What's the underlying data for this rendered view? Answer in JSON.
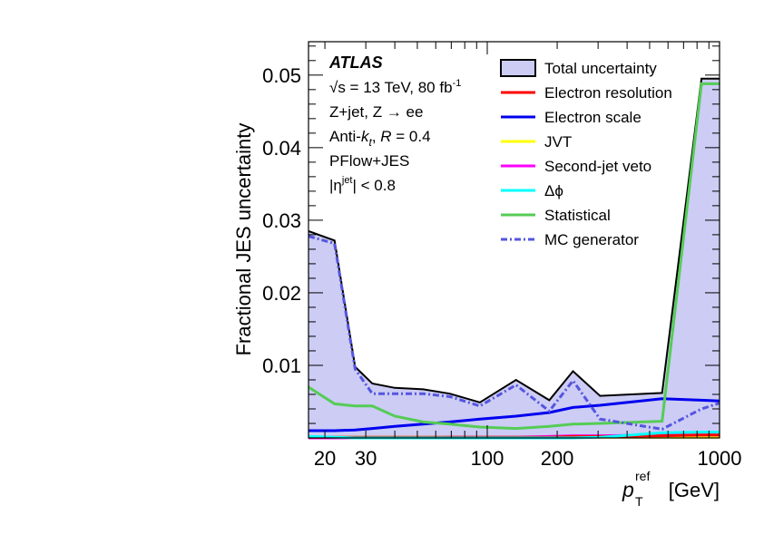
{
  "chart_data": {
    "type": "line",
    "title": "",
    "xlabel": "p_T^ref [GeV]",
    "xlabel_main": "p",
    "xlabel_sub": "T",
    "xlabel_sup": "ref",
    "xlabel_unit": "[GeV]",
    "ylabel": "Fractional JES uncertainty",
    "xscale": "log",
    "xlim": [
      17,
      1000
    ],
    "ylim": [
      0,
      0.0546
    ],
    "x_ticklabels": [
      {
        "value": 20,
        "label": "20"
      },
      {
        "value": 30,
        "label": "30"
      },
      {
        "value": 100,
        "label": "100"
      },
      {
        "value": 200,
        "label": "200"
      },
      {
        "value": 1000,
        "label": "1000"
      }
    ],
    "y_ticklabels": [
      {
        "value": 0.01,
        "label": "0.01"
      },
      {
        "value": 0.02,
        "label": "0.02"
      },
      {
        "value": 0.03,
        "label": "0.03"
      },
      {
        "value": 0.04,
        "label": "0.04"
      },
      {
        "value": 0.05,
        "label": "0.05"
      }
    ],
    "annotations": {
      "experiment": "ATLAS",
      "energy": "√s = 13 TeV, 80 fb",
      "energy_sup": "-1",
      "channel": "Z+jet, Z → ee",
      "algorithm": "Anti-k_t, R = 0.4",
      "algorithm_a": "Anti-",
      "algorithm_k": "k",
      "algorithm_t": "t",
      "algorithm_b": ", ",
      "algorithm_R": "R",
      "algorithm_c": " = 0.4",
      "calibration": "PFlow+JES",
      "eta_a": "|η",
      "eta_sup": "jet",
      "eta_b": "| < 0.8"
    },
    "legend_position": "top-right",
    "x": [
      17,
      22,
      27,
      32,
      40,
      53,
      69,
      93,
      133,
      185,
      234,
      306,
      566,
      836,
      1000
    ],
    "series": [
      {
        "name": "Total uncertainty",
        "color": "#000000",
        "fill": "#ccccf5",
        "style": "filled",
        "values": [
          0.0285,
          0.0272,
          0.0098,
          0.0075,
          0.0069,
          0.0067,
          0.0061,
          0.0049,
          0.008,
          0.0052,
          0.0092,
          0.0058,
          0.0062,
          0.0495,
          0.0495
        ]
      },
      {
        "name": "Electron resolution",
        "color": "#ff0000",
        "style": "solid",
        "values": [
          0.0001,
          0.0001,
          0.0001,
          0.0001,
          0.0001,
          0.0001,
          0.0001,
          0.0001,
          0.0001,
          0.0001,
          0.0002,
          0.0002,
          0.0003,
          0.0004,
          0.0004
        ]
      },
      {
        "name": "Electron scale",
        "color": "#0000ee",
        "style": "solid",
        "values": [
          0.001,
          0.001,
          0.0011,
          0.0013,
          0.0016,
          0.0019,
          0.0022,
          0.0026,
          0.003,
          0.0035,
          0.0042,
          0.0045,
          0.0054,
          0.0052,
          0.0051
        ]
      },
      {
        "name": "JVT",
        "color": "#ffff00",
        "style": "solid",
        "values": [
          0.0001,
          0.0001,
          0.0001,
          0.0001,
          0.0001,
          0.0001,
          0.0001,
          0.0001,
          0.0001,
          0.0001,
          0.0001,
          0.0001,
          0.0001,
          0.0001,
          0.0001
        ]
      },
      {
        "name": "Second-jet veto",
        "color": "#ff00ff",
        "style": "solid",
        "values": [
          0.0,
          0.0,
          0.0,
          0.0,
          0.0,
          0.0,
          0.0001,
          0.0001,
          0.0001,
          0.0002,
          0.0003,
          0.0003,
          0.0004,
          0.0004,
          0.0004
        ]
      },
      {
        "name": "Δϕ",
        "color": "#00ffff",
        "style": "solid",
        "values": [
          0.0002,
          0.0001,
          0.0,
          0.0,
          0.0,
          0.0,
          0.0,
          0.0,
          0.0,
          0.0,
          0.0,
          0.0001,
          0.0007,
          0.0008,
          0.0008
        ]
      },
      {
        "name": "Statistical",
        "color": "#55cc55",
        "style": "solid",
        "values": [
          0.007,
          0.0047,
          0.0044,
          0.0044,
          0.003,
          0.0022,
          0.0019,
          0.0015,
          0.0013,
          0.0016,
          0.0019,
          0.002,
          0.0023,
          0.0488,
          0.0488
        ]
      },
      {
        "name": "MC generator",
        "color": "#5555e0",
        "style": "dashdot",
        "values": [
          0.0278,
          0.0268,
          0.0095,
          0.0061,
          0.0061,
          0.0061,
          0.0057,
          0.0044,
          0.0073,
          0.0037,
          0.0079,
          0.0026,
          0.0012,
          0.004,
          0.0048
        ]
      }
    ]
  }
}
